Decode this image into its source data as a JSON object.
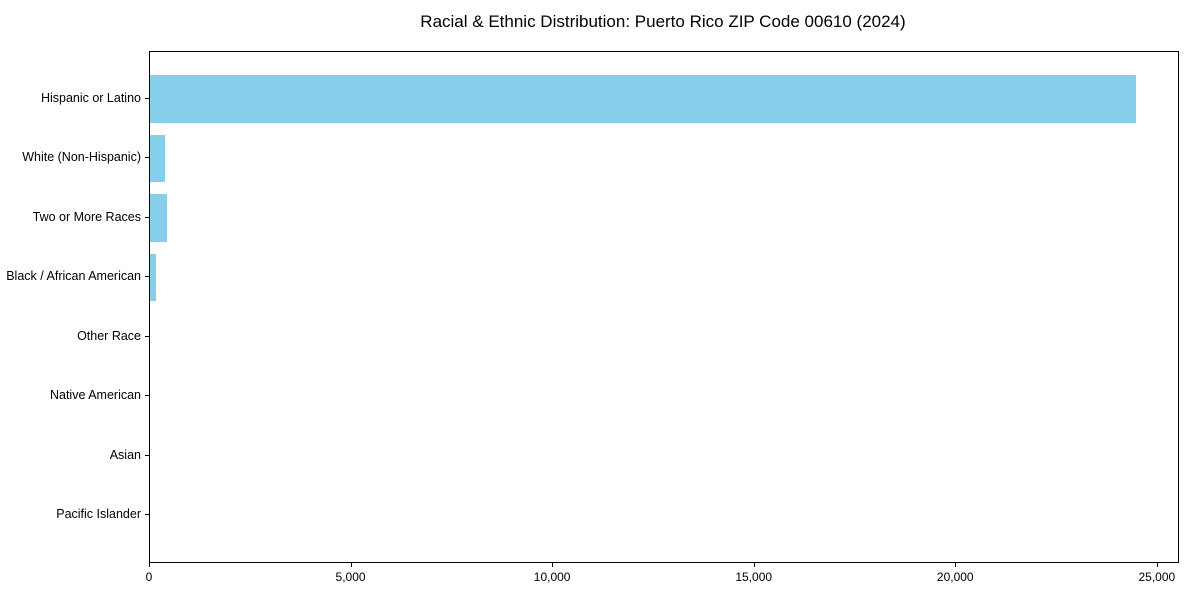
{
  "chart_data": {
    "type": "bar",
    "orientation": "horizontal",
    "title": "Racial & Ethnic Distribution: Puerto Rico ZIP Code 00610 (2024)",
    "categories": [
      "Hispanic or Latino",
      "White (Non-Hispanic)",
      "Two or More Races",
      "Black / African American",
      "Other Race",
      "Native American",
      "Asian",
      "Pacific Islander"
    ],
    "values": [
      24450,
      375,
      420,
      160,
      0,
      0,
      0,
      0
    ],
    "xlabel": "",
    "ylabel": "",
    "xlim": [
      0,
      25500
    ],
    "xticks": [
      0,
      5000,
      10000,
      15000,
      20000,
      25000
    ],
    "xtick_labels": [
      "0",
      "5,000",
      "10,000",
      "15,000",
      "20,000",
      "25,000"
    ],
    "bar_color": "#87CEEB",
    "frame_color": "#000000",
    "text_color": "#000000",
    "grid": false,
    "legend": null
  }
}
